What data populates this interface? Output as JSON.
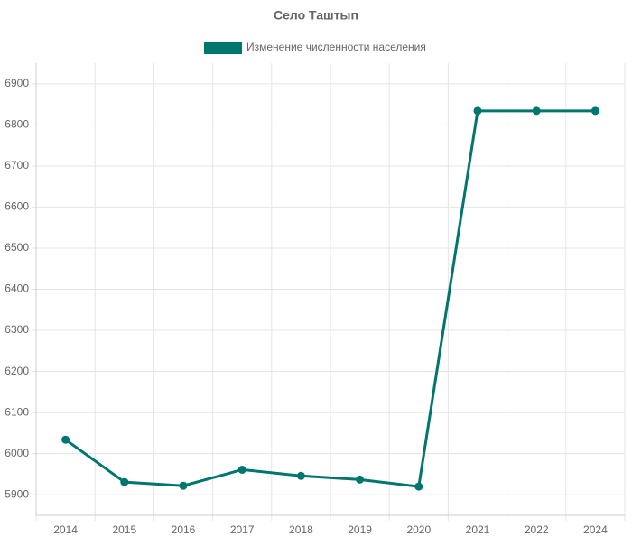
{
  "chart_data": {
    "type": "line",
    "title": "Село Таштып",
    "categories": [
      "2014",
      "2015",
      "2016",
      "2017",
      "2018",
      "2019",
      "2020",
      "2021",
      "2022",
      "2024"
    ],
    "series": [
      {
        "name": "Изменение численности населения",
        "color": "#00766f",
        "values": [
          6034,
          5931,
          5922,
          5961,
          5946,
          5937,
          5920,
          6834,
          6834,
          6834
        ]
      }
    ],
    "ylim": [
      5850,
      6950
    ],
    "yticks": [
      5900,
      6000,
      6100,
      6200,
      6300,
      6400,
      6500,
      6600,
      6700,
      6800,
      6900
    ],
    "grid": true,
    "legend": "top"
  }
}
